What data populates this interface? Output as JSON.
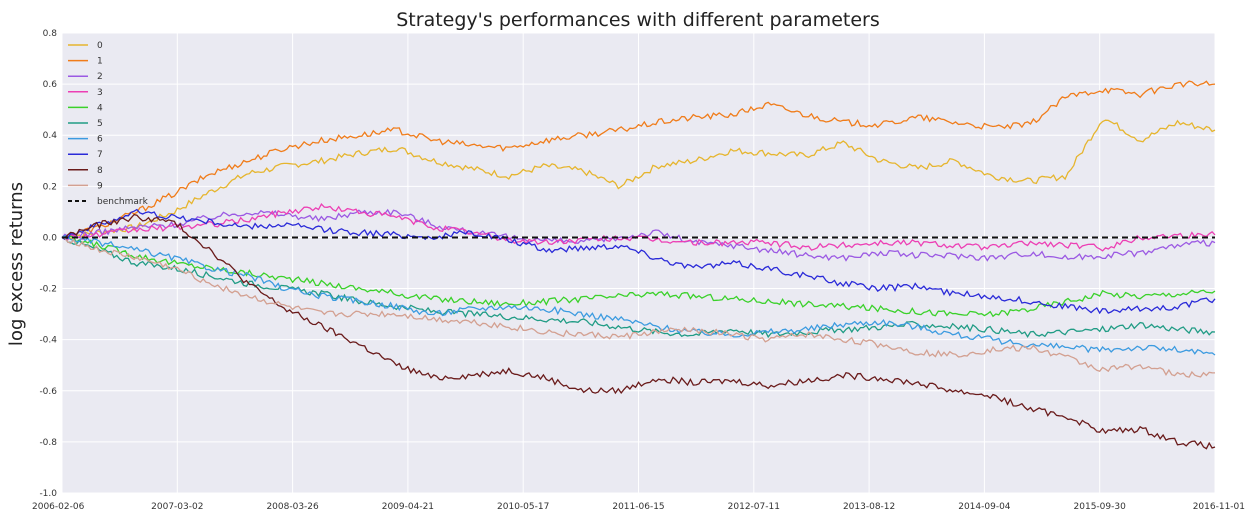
{
  "chart_data": {
    "type": "line",
    "title": "Strategy's performances with different parameters",
    "xlabel": "",
    "ylabel": "log excess returns",
    "ylim": [
      -1.0,
      0.8
    ],
    "yticks": [
      "-1.0",
      "-0.8",
      "-0.6",
      "-0.4",
      "-0.2",
      "0.0",
      "0.2",
      "0.4",
      "0.6",
      "0.8"
    ],
    "x_tick_labels": [
      "2006-02-06",
      "2007-03-02",
      "2008-03-26",
      "2009-04-21",
      "2010-05-17",
      "2011-06-15",
      "2012-07-11",
      "2013-08-12",
      "2014-09-04",
      "2015-09-30",
      "2016-11-01"
    ],
    "grid": true,
    "legend_position": "top-left",
    "background": "#eaeaf2",
    "series": [
      {
        "name": "0",
        "color": "#e6b52e",
        "values": [
          0,
          0.02,
          0.04,
          0.1,
          0.18,
          0.25,
          0.28,
          0.3,
          0.33,
          0.35,
          0.3,
          0.27,
          0.24,
          0.28,
          0.26,
          0.2,
          0.28,
          0.3,
          0.34,
          0.33,
          0.32,
          0.37,
          0.3,
          0.27,
          0.3,
          0.24,
          0.22,
          0.24,
          0.47,
          0.38,
          0.45,
          0.42
        ]
      },
      {
        "name": "1",
        "color": "#f07c1a",
        "values": [
          0,
          0.04,
          0.1,
          0.17,
          0.25,
          0.3,
          0.35,
          0.38,
          0.4,
          0.42,
          0.38,
          0.36,
          0.35,
          0.38,
          0.4,
          0.42,
          0.45,
          0.47,
          0.48,
          0.52,
          0.48,
          0.45,
          0.44,
          0.47,
          0.45,
          0.43,
          0.44,
          0.55,
          0.58,
          0.56,
          0.6,
          0.6
        ]
      },
      {
        "name": "2",
        "color": "#9b59e3",
        "values": [
          0,
          0.02,
          0.04,
          0.05,
          0.08,
          0.1,
          0.09,
          0.07,
          0.1,
          0.1,
          0.05,
          0.02,
          0.0,
          -0.01,
          -0.02,
          0.0,
          0.02,
          -0.02,
          -0.03,
          -0.05,
          -0.07,
          -0.08,
          -0.06,
          -0.07,
          -0.07,
          -0.08,
          -0.06,
          -0.08,
          -0.07,
          -0.06,
          -0.03,
          -0.02
        ]
      },
      {
        "name": "3",
        "color": "#ec3fb4",
        "values": [
          0,
          0.01,
          0.03,
          0.04,
          0.05,
          0.07,
          0.1,
          0.12,
          0.1,
          0.08,
          0.04,
          0.02,
          -0.01,
          -0.02,
          -0.01,
          0.0,
          -0.01,
          -0.02,
          -0.02,
          -0.02,
          -0.04,
          -0.03,
          -0.02,
          -0.02,
          -0.03,
          -0.04,
          -0.02,
          -0.03,
          -0.04,
          0.0,
          0.01,
          0.01
        ]
      },
      {
        "name": "4",
        "color": "#3ad12a",
        "values": [
          0,
          -0.03,
          -0.07,
          -0.1,
          -0.12,
          -0.14,
          -0.16,
          -0.18,
          -0.2,
          -0.22,
          -0.24,
          -0.25,
          -0.26,
          -0.25,
          -0.24,
          -0.23,
          -0.22,
          -0.23,
          -0.24,
          -0.25,
          -0.26,
          -0.27,
          -0.28,
          -0.29,
          -0.3,
          -0.3,
          -0.28,
          -0.25,
          -0.22,
          -0.23,
          -0.22,
          -0.21
        ]
      },
      {
        "name": "5",
        "color": "#219c85",
        "values": [
          0,
          -0.05,
          -0.1,
          -0.12,
          -0.15,
          -0.18,
          -0.2,
          -0.22,
          -0.25,
          -0.27,
          -0.29,
          -0.3,
          -0.31,
          -0.32,
          -0.33,
          -0.35,
          -0.37,
          -0.38,
          -0.36,
          -0.38,
          -0.37,
          -0.36,
          -0.35,
          -0.34,
          -0.35,
          -0.36,
          -0.38,
          -0.37,
          -0.36,
          -0.34,
          -0.36,
          -0.37
        ]
      },
      {
        "name": "6",
        "color": "#3c9be0",
        "values": [
          0,
          -0.02,
          -0.05,
          -0.08,
          -0.12,
          -0.15,
          -0.2,
          -0.23,
          -0.25,
          -0.27,
          -0.3,
          -0.28,
          -0.27,
          -0.28,
          -0.3,
          -0.32,
          -0.35,
          -0.37,
          -0.38,
          -0.37,
          -0.36,
          -0.34,
          -0.33,
          -0.35,
          -0.38,
          -0.4,
          -0.42,
          -0.43,
          -0.44,
          -0.43,
          -0.44,
          -0.46
        ]
      },
      {
        "name": "7",
        "color": "#2a2ad8",
        "values": [
          0,
          0.05,
          0.1,
          0.08,
          0.06,
          0.04,
          0.05,
          0.03,
          0.02,
          0.01,
          0.0,
          0.02,
          -0.01,
          -0.05,
          -0.04,
          -0.03,
          -0.08,
          -0.12,
          -0.1,
          -0.12,
          -0.15,
          -0.18,
          -0.2,
          -0.19,
          -0.22,
          -0.23,
          -0.25,
          -0.27,
          -0.29,
          -0.28,
          -0.27,
          -0.24
        ]
      },
      {
        "name": "8",
        "color": "#6a1b1b",
        "values": [
          0,
          0.05,
          0.08,
          0.06,
          -0.05,
          -0.18,
          -0.28,
          -0.35,
          -0.42,
          -0.5,
          -0.55,
          -0.54,
          -0.52,
          -0.55,
          -0.6,
          -0.6,
          -0.55,
          -0.57,
          -0.56,
          -0.58,
          -0.56,
          -0.54,
          -0.55,
          -0.57,
          -0.6,
          -0.62,
          -0.67,
          -0.7,
          -0.76,
          -0.75,
          -0.8,
          -0.82
        ]
      },
      {
        "name": "9",
        "color": "#d3a091",
        "values": [
          0,
          -0.05,
          -0.08,
          -0.12,
          -0.18,
          -0.23,
          -0.27,
          -0.3,
          -0.3,
          -0.3,
          -0.32,
          -0.33,
          -0.35,
          -0.37,
          -0.38,
          -0.39,
          -0.37,
          -0.36,
          -0.38,
          -0.4,
          -0.38,
          -0.4,
          -0.42,
          -0.45,
          -0.46,
          -0.44,
          -0.43,
          -0.47,
          -0.52,
          -0.5,
          -0.54,
          -0.53
        ]
      },
      {
        "name": "benchmark",
        "color": "#111111",
        "dashed": true,
        "values": [
          0,
          0,
          0,
          0,
          0,
          0,
          0,
          0,
          0,
          0,
          0,
          0,
          0,
          0,
          0,
          0,
          0,
          0,
          0,
          0,
          0,
          0,
          0,
          0,
          0,
          0,
          0,
          0,
          0,
          0,
          0,
          0
        ]
      }
    ]
  }
}
